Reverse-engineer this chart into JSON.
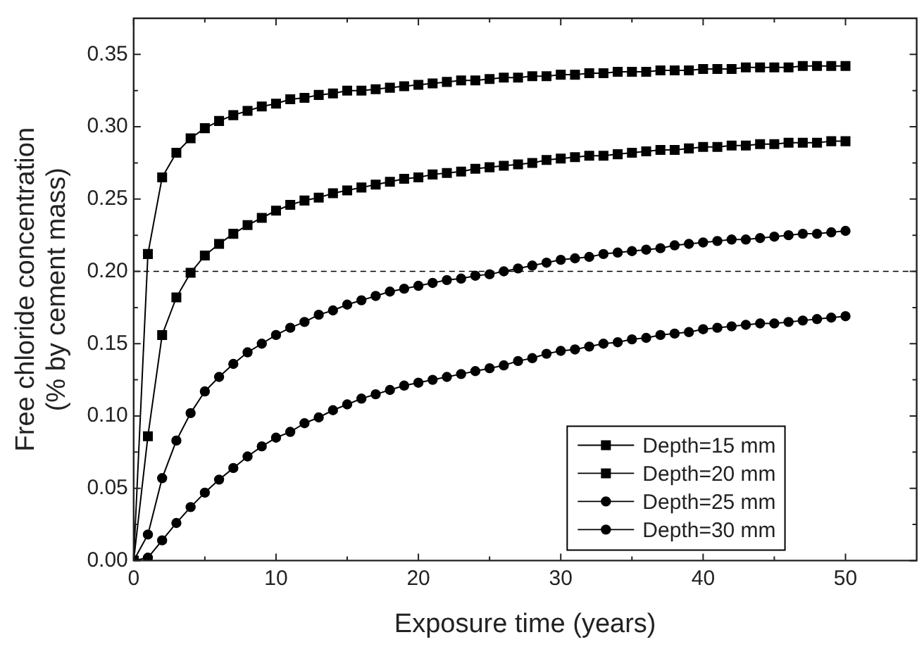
{
  "chart_data": {
    "type": "line",
    "xlabel": "Exposure time (years)",
    "ylabel": "Free chloride concentration\n(% by cement mass)",
    "x": [
      0,
      1,
      2,
      3,
      4,
      5,
      6,
      7,
      8,
      9,
      10,
      11,
      12,
      13,
      14,
      15,
      16,
      17,
      18,
      19,
      20,
      21,
      22,
      23,
      24,
      25,
      26,
      27,
      28,
      29,
      30,
      31,
      32,
      33,
      34,
      35,
      36,
      37,
      38,
      39,
      40,
      41,
      42,
      43,
      44,
      45,
      46,
      47,
      48,
      49,
      50
    ],
    "xlim": [
      0,
      55
    ],
    "xticks": [
      0,
      {
        "value": 5,
        "label": null
      },
      10,
      {
        "value": 15,
        "label": null
      },
      20,
      {
        "value": 25,
        "label": null
      },
      30,
      {
        "value": 35,
        "label": null
      },
      40,
      {
        "value": 45,
        "label": null
      },
      50
    ],
    "ylim": [
      0,
      0.375
    ],
    "yticks": [
      {
        "value": 0,
        "label": "0.00"
      },
      {
        "value": 0.025,
        "label": null
      },
      0.05,
      {
        "value": 0.075,
        "label": null
      },
      {
        "value": 0.1,
        "label": "0.10"
      },
      {
        "value": 0.125,
        "label": null
      },
      0.15,
      {
        "value": 0.175,
        "label": null
      },
      {
        "value": 0.2,
        "label": "0.20"
      },
      {
        "value": 0.225,
        "label": null
      },
      0.25,
      {
        "value": 0.275,
        "label": null
      },
      {
        "value": 0.3,
        "label": "0.30"
      },
      {
        "value": 0.325,
        "label": null
      },
      0.35
    ],
    "grid": false,
    "legend": "bottom right",
    "line_style": "solid",
    "ref_lines": [
      {
        "axis": "y",
        "value": 0.2,
        "line_style": "dashed",
        "color": "#000000"
      }
    ],
    "series": [
      {
        "name": "Depth=15 mm",
        "color": "#000000",
        "marker": "square",
        "values": [
          0,
          0.212,
          0.265,
          0.282,
          0.292,
          0.299,
          0.304,
          0.308,
          0.311,
          0.314,
          0.316,
          0.319,
          0.32,
          0.322,
          0.323,
          0.325,
          0.325,
          0.326,
          0.327,
          0.328,
          0.329,
          0.33,
          0.331,
          0.332,
          0.332,
          0.333,
          0.334,
          0.334,
          0.335,
          0.335,
          0.336,
          0.336,
          0.337,
          0.337,
          0.338,
          0.338,
          0.338,
          0.339,
          0.339,
          0.339,
          0.34,
          0.34,
          0.34,
          0.341,
          0.341,
          0.341,
          0.341,
          0.342,
          0.342,
          0.342,
          0.342
        ]
      },
      {
        "name": "Depth=20 mm",
        "color": "#000000",
        "marker": "square",
        "values": [
          0,
          0.086,
          0.156,
          0.182,
          0.199,
          0.211,
          0.219,
          0.226,
          0.232,
          0.237,
          0.242,
          0.246,
          0.249,
          0.251,
          0.254,
          0.256,
          0.258,
          0.26,
          0.262,
          0.264,
          0.265,
          0.267,
          0.268,
          0.269,
          0.271,
          0.272,
          0.273,
          0.274,
          0.275,
          0.277,
          0.278,
          0.279,
          0.28,
          0.28,
          0.281,
          0.282,
          0.283,
          0.284,
          0.284,
          0.285,
          0.286,
          0.286,
          0.287,
          0.287,
          0.288,
          0.288,
          0.289,
          0.289,
          0.289,
          0.29,
          0.29
        ]
      },
      {
        "name": "Depth=25 mm",
        "color": "#000000",
        "marker": "circle",
        "values": [
          0,
          0.018,
          0.057,
          0.083,
          0.102,
          0.117,
          0.127,
          0.136,
          0.144,
          0.15,
          0.156,
          0.161,
          0.165,
          0.17,
          0.173,
          0.177,
          0.18,
          0.183,
          0.186,
          0.188,
          0.19,
          0.192,
          0.194,
          0.195,
          0.197,
          0.198,
          0.2,
          0.202,
          0.204,
          0.206,
          0.208,
          0.209,
          0.21,
          0.212,
          0.213,
          0.214,
          0.215,
          0.216,
          0.218,
          0.219,
          0.22,
          0.221,
          0.222,
          0.222,
          0.223,
          0.224,
          0.225,
          0.226,
          0.226,
          0.227,
          0.228
        ]
      },
      {
        "name": "Depth=30 mm",
        "color": "#000000",
        "marker": "circle",
        "values": [
          0,
          0.002,
          0.014,
          0.026,
          0.037,
          0.047,
          0.056,
          0.064,
          0.072,
          0.079,
          0.085,
          0.089,
          0.095,
          0.099,
          0.104,
          0.108,
          0.112,
          0.115,
          0.118,
          0.121,
          0.123,
          0.125,
          0.127,
          0.129,
          0.131,
          0.133,
          0.135,
          0.138,
          0.14,
          0.143,
          0.145,
          0.146,
          0.148,
          0.15,
          0.151,
          0.153,
          0.154,
          0.156,
          0.157,
          0.158,
          0.16,
          0.161,
          0.162,
          0.163,
          0.164,
          0.164,
          0.165,
          0.166,
          0.167,
          0.168,
          0.169
        ]
      }
    ]
  }
}
